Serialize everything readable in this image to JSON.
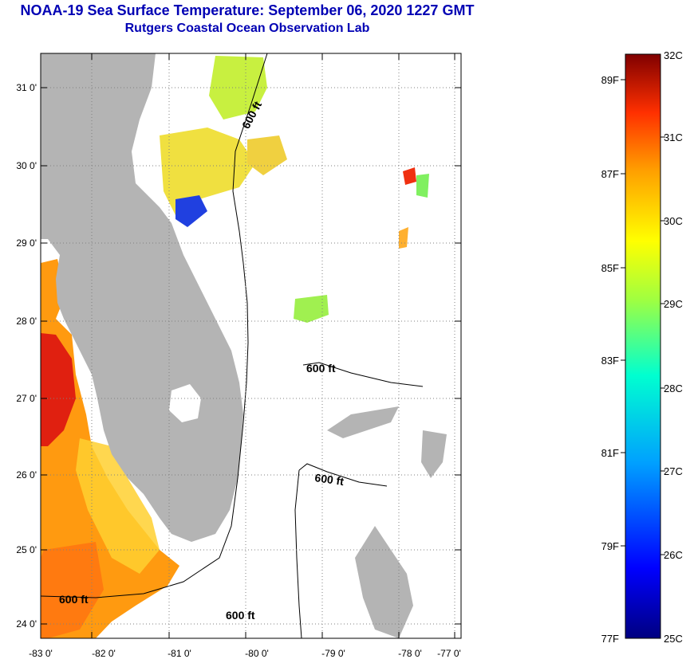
{
  "header": {
    "title": "NOAA-19 Sea Surface Temperature:  September 06, 2020 1227 GMT",
    "subtitle": "Rutgers Coastal Ocean Observation Lab"
  },
  "map": {
    "lat_labels": [
      "31 0'",
      "30 0'",
      "29 0'",
      "28 0'",
      "27 0'",
      "26 0'",
      "25 0'",
      "24 0'"
    ],
    "lon_labels": [
      "-83 0'",
      "-82 0'",
      "-81 0'",
      "-80 0'",
      "-79 0'",
      "-78 0'",
      "-77 0'"
    ],
    "contour_labels": [
      "600 ft",
      "600 ft",
      "600 ft",
      "600 ft",
      "600 ft"
    ],
    "colors": {
      "land": "#b4b4b4",
      "ocean": "#ffffff",
      "grid": "#808080"
    }
  },
  "colorbar": {
    "celsius_labels": [
      "32C",
      "31C",
      "30C",
      "29C",
      "28C",
      "27C",
      "26C",
      "25C"
    ],
    "fahrenheit_labels": [
      "89F",
      "87F",
      "85F",
      "83F",
      "81F",
      "79F",
      "77F"
    ],
    "range_c": [
      25,
      32
    ],
    "colors": [
      "#000080",
      "#0000ff",
      "#00a0ff",
      "#00ffd0",
      "#a0ff40",
      "#ffff00",
      "#ffa000",
      "#ff3000",
      "#800000"
    ]
  }
}
